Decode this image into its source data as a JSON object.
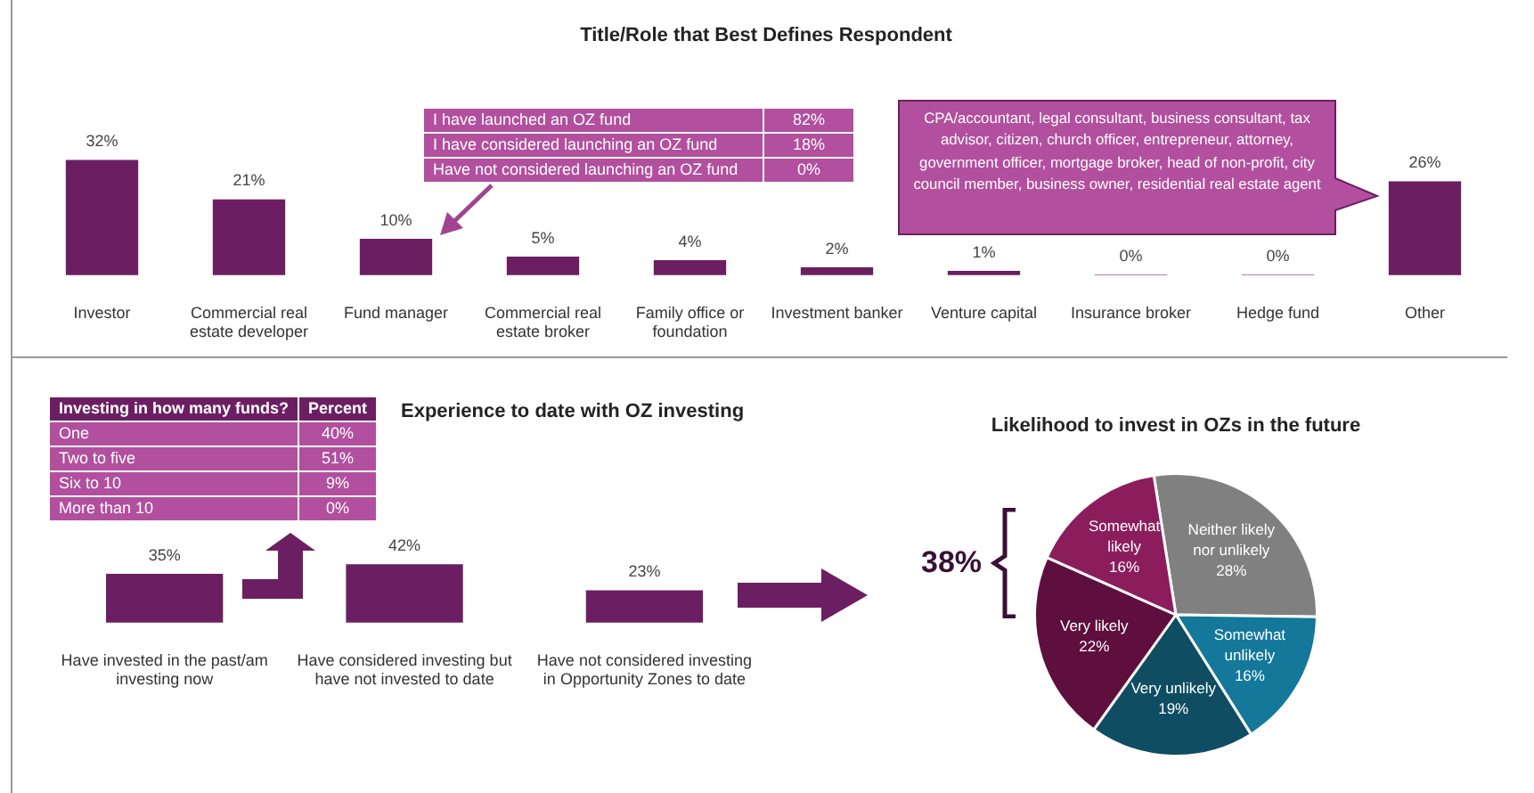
{
  "chart_data": [
    {
      "type": "bar",
      "title": "Title/Role that Best Defines Respondent",
      "categories": [
        "Investor",
        "Commercial real estate developer",
        "Fund manager",
        "Commercial real estate broker",
        "Family office or foundation",
        "Investment banker",
        "Venture capital",
        "Insurance broker",
        "Hedge fund",
        "Other"
      ],
      "values": [
        32,
        21,
        10,
        5,
        4,
        2,
        1,
        0,
        0,
        26
      ],
      "value_labels": [
        "32%",
        "21%",
        "10%",
        "5%",
        "4%",
        "2%",
        "1%",
        "0%",
        "0%",
        "26%"
      ],
      "color": "#6b1f62",
      "annotations": [
        "I have launched an OZ fund",
        "82%",
        "I have considered launching an OZ fund",
        "18%",
        "Have not considered launching an OZ fund",
        "0%",
        "CPA/accountant, legal consultant, business consultant, tax advisor, citizen, church officer, entrepreneur, attorney, government officer, mortgage broker, head of non-profit, city council member, business owner, residential real estate agent"
      ]
    },
    {
      "type": "bar",
      "title": "Experience to date with OZ investing",
      "categories": [
        "Have invested in the past/am investing now",
        "Have considered investing but have not invested to date",
        "Have not considered investing in Opportunity Zones to date"
      ],
      "values": [
        35,
        42,
        23
      ],
      "value_labels": [
        "35%",
        "42%",
        "23%"
      ],
      "color": "#6b1f62",
      "annotations": [
        "Investing in how many funds?",
        "Percent",
        "One",
        "40%",
        "Two to five",
        "51%",
        "Six to 10",
        "9%",
        "More than 10",
        "0%"
      ]
    },
    {
      "type": "pie",
      "title": "Likelihood to invest in OZs in the future",
      "categories": [
        "Neither likely nor unlikely",
        "Somewhat unlikely",
        "Very unlikely",
        "Very likely",
        "Somewhat likely"
      ],
      "values": [
        28,
        16,
        19,
        22,
        16
      ],
      "value_labels": [
        "28%",
        "16%",
        "19%",
        "22%",
        "16%"
      ],
      "colors": [
        "#808080",
        "#13789a",
        "#0f4d63",
        "#5e0f3e",
        "#8c1d5d"
      ],
      "annotations": [
        "38%"
      ]
    }
  ]
}
